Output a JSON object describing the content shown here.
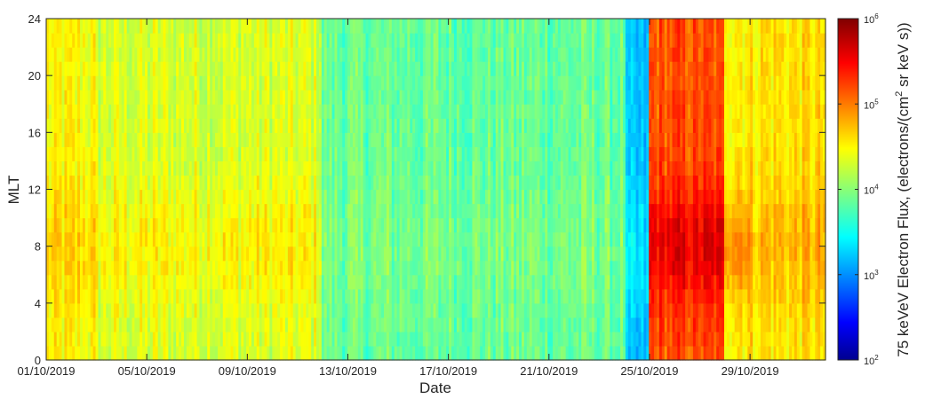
{
  "chart_data": {
    "type": "heatmap",
    "title": "",
    "xlabel": "Date",
    "ylabel": "MLT",
    "x_range": [
      "01/10/2019",
      "01/11/2019"
    ],
    "x_ticks": [
      "01/10/2019",
      "05/10/2019",
      "09/10/2019",
      "13/10/2019",
      "17/10/2019",
      "21/10/2019",
      "25/10/2019",
      "29/10/2019"
    ],
    "ylim": [
      0,
      24
    ],
    "y_ticks": [
      "0",
      "4",
      "8",
      "12",
      "16",
      "20",
      "24"
    ],
    "grid": false,
    "colormap": "jet",
    "colorbar": {
      "label": "75 keVeV Electron Flux, (electrons/(cm",
      "label_superscript": "2",
      "label_suffix": " sr keV s))",
      "scale": "log",
      "range": [
        100,
        1000000
      ],
      "tick_base": "10",
      "tick_exponents": [
        "2",
        "3",
        "4",
        "5",
        "6"
      ]
    },
    "flux_summary": [
      {
        "period": "01/10/2019 - 03/10/2019",
        "typical_flux": 30000,
        "note": "elevated, orange near MLT 4-12"
      },
      {
        "period": "03/10/2019 - 12/10/2019",
        "typical_flux": 22000,
        "note": "yellow-green, enhanced at MLT 4-12"
      },
      {
        "period": "12/10/2019 - 24/10/2019",
        "typical_flux": 8000,
        "note": "green-cyan, quiet"
      },
      {
        "period": "24/10/2019",
        "typical_flux": 1500,
        "note": "dropout (blue streak)"
      },
      {
        "period": "25/10/2019 - 28/10/2019",
        "typical_flux": 150000,
        "note": "strong enhancement, red/orange MLT 2-14"
      },
      {
        "period": "28/10/2019 - 31/10/2019",
        "typical_flux": 40000,
        "note": "decaying, yellow-orange"
      }
    ]
  }
}
